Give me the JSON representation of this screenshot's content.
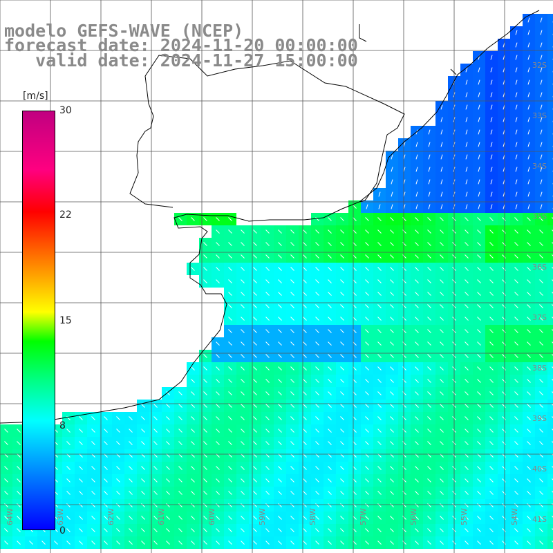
{
  "header": {
    "line1": "modelo GEFS-WAVE (NCEP)",
    "line2": "forecast date: 2024-11-20 00:00:00",
    "line3": "   valid date: 2024-11-27 15:00:00"
  },
  "colorbar": {
    "unit": "[m/s]",
    "ticks": [
      "30",
      "22",
      "15",
      "8",
      "0"
    ],
    "colors": [
      "#0000ff",
      "#00ffff",
      "#00ff00",
      "#ffff00",
      "#ff0000",
      "#c00080"
    ]
  },
  "map": {
    "variable": "wind speed with direction arrows",
    "lat_labels": [
      "32S",
      "33S",
      "34S",
      "35S",
      "36S",
      "37S",
      "38S",
      "39S",
      "40S",
      "41S"
    ],
    "lon_labels": [
      "64W",
      "63W",
      "62W",
      "61W",
      "60W",
      "59W",
      "58W",
      "57W",
      "56W",
      "55W",
      "54W"
    ],
    "land_color": "#ffffff",
    "grid_color": "#555555",
    "coast_color": "#000000",
    "arrow_color": "#ffffff"
  }
}
